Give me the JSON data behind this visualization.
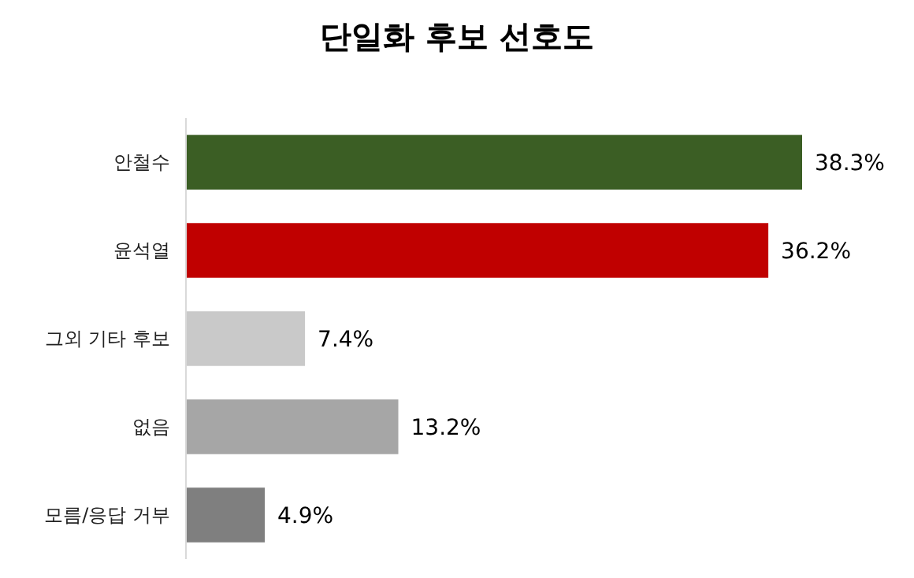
{
  "chart_data": {
    "type": "bar",
    "orientation": "horizontal",
    "title": "단일화 후보 선호도",
    "categories": [
      "안철수",
      "윤석열",
      "그외 기타 후보",
      "없음",
      "모름/응답 거부"
    ],
    "values": [
      38.3,
      36.2,
      7.4,
      13.2,
      4.9
    ],
    "colors": [
      "#3b5e24",
      "#c00000",
      "#c9c9c9",
      "#a6a6a6",
      "#7f7f7f"
    ],
    "value_labels": [
      "38.3%",
      "36.2%",
      "7.4%",
      "13.2%",
      "4.9%"
    ]
  }
}
